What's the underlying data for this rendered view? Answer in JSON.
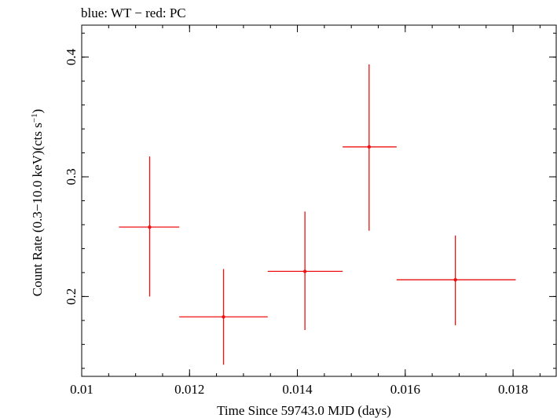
{
  "header_text": "blue: WT − red: PC",
  "chart_data": {
    "type": "scatter",
    "title": "blue: WT − red: PC",
    "xlabel": "Time Since 59743.0 MJD (days)",
    "ylabel_main": "Count Rate (0.3−10.0 keV)(cts s",
    "ylabel_sup": "−1",
    "ylabel_close": ")",
    "xlim": [
      0.01,
      0.0188
    ],
    "ylim": [
      0.1333,
      0.4267
    ],
    "x_ticks": [
      {
        "value": 0.01,
        "label": "0.01"
      },
      {
        "value": 0.012,
        "label": "0.012"
      },
      {
        "value": 0.014,
        "label": "0.014"
      },
      {
        "value": 0.016,
        "label": "0.016"
      },
      {
        "value": 0.018,
        "label": "0.018"
      }
    ],
    "x_minor_step": 0.0005,
    "y_ticks": [
      {
        "value": 0.2,
        "label": "0.2"
      },
      {
        "value": 0.3,
        "label": "0.3"
      },
      {
        "value": 0.4,
        "label": "0.4"
      }
    ],
    "y_minor_step": 0.02,
    "series": [
      {
        "name": "PC",
        "color": "#ee1111",
        "points": [
          {
            "x": 0.01126,
            "xlo": 0.01069,
            "xhi": 0.01181,
            "y": 0.258,
            "ylo": 0.2,
            "yhi": 0.317
          },
          {
            "x": 0.01263,
            "xlo": 0.01181,
            "xhi": 0.01345,
            "y": 0.183,
            "ylo": 0.143,
            "yhi": 0.223
          },
          {
            "x": 0.01414,
            "xlo": 0.01345,
            "xhi": 0.01484,
            "y": 0.221,
            "ylo": 0.172,
            "yhi": 0.271
          },
          {
            "x": 0.01533,
            "xlo": 0.01484,
            "xhi": 0.01584,
            "y": 0.325,
            "ylo": 0.255,
            "yhi": 0.394
          },
          {
            "x": 0.01693,
            "xlo": 0.01584,
            "xhi": 0.01805,
            "y": 0.214,
            "ylo": 0.176,
            "yhi": 0.251
          }
        ]
      }
    ]
  }
}
